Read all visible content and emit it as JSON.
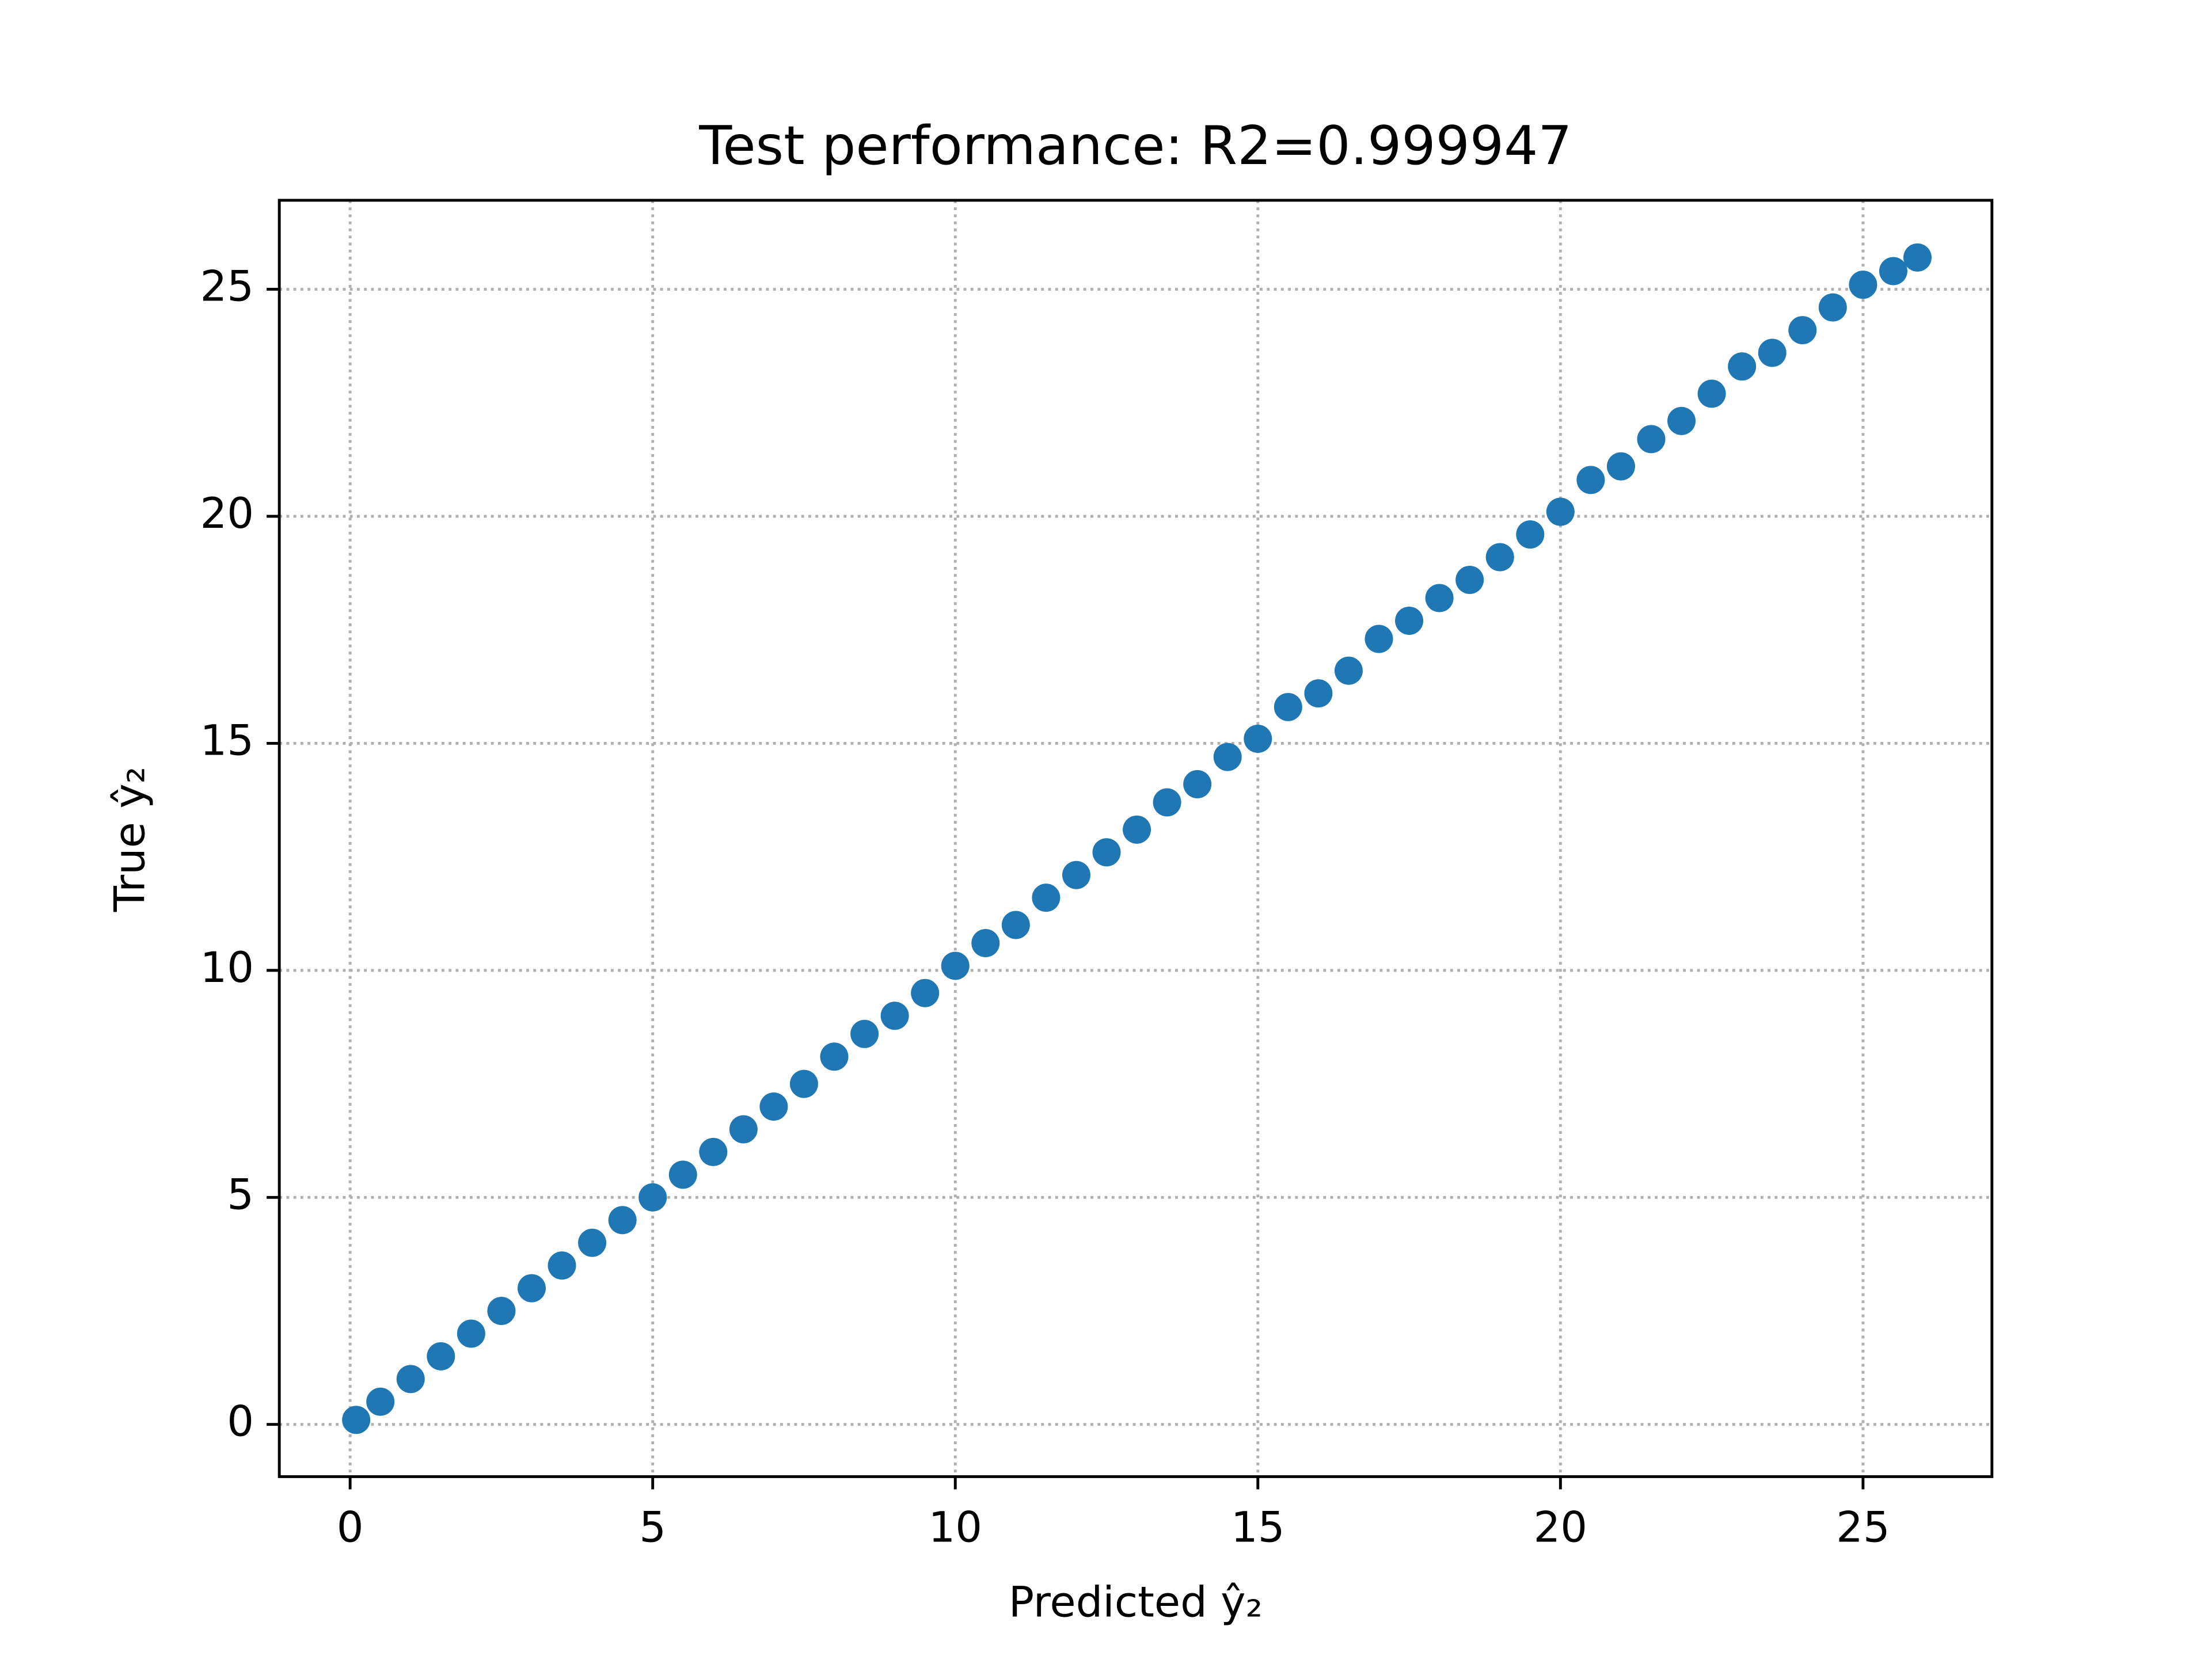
{
  "chart_data": {
    "type": "scatter",
    "title": "Test performance: R2=0.999947",
    "x_label": "Predicted ŷ₂",
    "y_label": "True ŷ₂",
    "color": "#1f77b4",
    "grid": true,
    "xlim": [
      -1.17,
      27.13
    ],
    "ylim": [
      -1.15,
      26.96
    ],
    "xticks": [
      0,
      5,
      10,
      15,
      20,
      25
    ],
    "yticks": [
      0,
      5,
      10,
      15,
      20,
      25
    ],
    "x": [
      0.1,
      0.5,
      1.0,
      1.5,
      2.0,
      2.5,
      3.0,
      3.5,
      4.0,
      4.5,
      5.0,
      5.5,
      6.0,
      6.5,
      7.0,
      7.5,
      8.0,
      8.5,
      9.0,
      9.5,
      10.0,
      10.5,
      11.0,
      11.5,
      12.0,
      12.5,
      13.0,
      13.5,
      14.0,
      14.5,
      15.0,
      15.5,
      16.0,
      16.5,
      17.0,
      17.5,
      18.0,
      18.5,
      19.0,
      19.5,
      20.0,
      20.5,
      21.0,
      21.5,
      22.0,
      22.5,
      23.0,
      23.5,
      24.0,
      24.5,
      25.0,
      25.5,
      25.9
    ],
    "values": [
      0.1,
      0.5,
      1.0,
      1.5,
      2.0,
      2.5,
      3.0,
      3.5,
      4.0,
      4.5,
      5.0,
      5.5,
      6.0,
      6.5,
      7.0,
      7.5,
      8.1,
      8.6,
      9.0,
      9.5,
      10.1,
      10.6,
      11.0,
      11.6,
      12.1,
      12.6,
      13.1,
      13.7,
      14.1,
      14.7,
      15.1,
      15.8,
      16.1,
      16.6,
      17.3,
      17.7,
      18.2,
      18.6,
      19.1,
      19.6,
      20.1,
      20.8,
      21.1,
      21.7,
      22.1,
      22.7,
      23.3,
      23.6,
      24.1,
      24.6,
      25.1,
      25.4,
      25.7
    ]
  }
}
